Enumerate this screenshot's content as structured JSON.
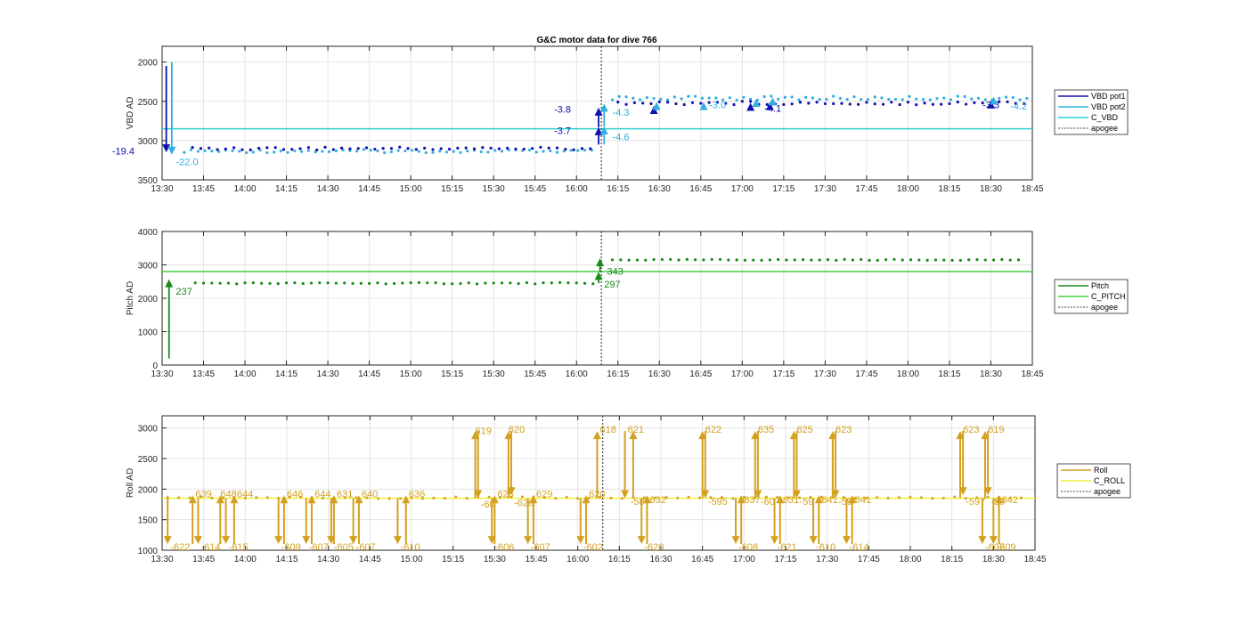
{
  "title": "G&C motor data for dive 766",
  "chart_data": [
    {
      "type": "scatter",
      "name": "vbd",
      "ylabel": "VBD AD",
      "ylim": [
        3500,
        1800
      ],
      "yticks": [
        2000,
        2500,
        3000,
        3500
      ],
      "xlim_minutes": [
        0,
        315
      ],
      "xtick_labels": [
        "13:30",
        "13:45",
        "14:00",
        "14:15",
        "14:30",
        "14:45",
        "15:00",
        "15:15",
        "15:30",
        "15:45",
        "16:00",
        "16:15",
        "16:30",
        "16:45",
        "17:00",
        "17:15",
        "17:30",
        "17:45",
        "18:00",
        "18:15",
        "18:30",
        "18:45"
      ],
      "apogee_minutes": 159,
      "legend": [
        "VBD pot1",
        "VBD pot2",
        "C_VBD",
        "apogee"
      ],
      "colors": {
        "pot1": "#1010b0",
        "pot2": "#30b0e0",
        "c": "#30d0d0",
        "apogee": "#444444"
      },
      "c_value": 2850,
      "pot1_points": {
        "start_min": 11,
        "end_min": 157,
        "step": 3,
        "level": 3100,
        "jitter": 20
      },
      "pot1_points_after": {
        "start_min": 165,
        "end_min": 312,
        "step": 3,
        "level": 2520,
        "jitter": 25
      },
      "pot2_points": {
        "start_min": 8,
        "end_min": 157,
        "step": 2.5,
        "level": 3135,
        "jitter": 20
      },
      "pot2_points_after": {
        "start_min": 163,
        "end_min": 314,
        "step": 2.5,
        "level": 2460,
        "jitter": 25
      },
      "arrows": [
        {
          "series": "pot1",
          "x": 1.5,
          "y0": 2050,
          "y1": 3150,
          "label": "-19.4",
          "lx": -10,
          "ly": 3130,
          "anchor": "end"
        },
        {
          "series": "pot2",
          "x": 3.5,
          "y0": 2000,
          "y1": 3180,
          "label": "-22.0",
          "lx": 5,
          "ly": 3270,
          "anchor": "start"
        },
        {
          "series": "pot1",
          "x": 158,
          "y0": 3050,
          "y1": 2830,
          "label": "-3.7",
          "lx": 148,
          "ly": 2870,
          "anchor": "end"
        },
        {
          "series": "pot1",
          "x": 158,
          "y0": 2830,
          "y1": 2580,
          "label": "-3.8",
          "lx": 148,
          "ly": 2600,
          "anchor": "end"
        },
        {
          "series": "pot2",
          "x": 160,
          "y0": 3050,
          "y1": 2820,
          "label": "-4.6",
          "lx": 163,
          "ly": 2950,
          "anchor": "start"
        },
        {
          "series": "pot2",
          "x": 160,
          "y0": 2820,
          "y1": 2530,
          "label": "-4.3",
          "lx": 163,
          "ly": 2640,
          "anchor": "start"
        },
        {
          "series": "pot1",
          "x": 178,
          "y0": 2580,
          "y1": 2560,
          "label": "",
          "lx": 0,
          "ly": 0,
          "anchor": "start"
        },
        {
          "series": "pot2",
          "x": 179,
          "y0": 2560,
          "y1": 2510,
          "label": "",
          "lx": 0,
          "ly": 0,
          "anchor": "start"
        },
        {
          "series": "pot2",
          "x": 196,
          "y0": 2540,
          "y1": 2510,
          "label": "-3.0",
          "lx": 198,
          "ly": 2545,
          "anchor": "start"
        },
        {
          "series": "pot1",
          "x": 213,
          "y0": 2540,
          "y1": 2520,
          "label": "",
          "lx": 0,
          "ly": 0,
          "anchor": "start"
        },
        {
          "series": "pot2",
          "x": 215,
          "y0": 2510,
          "y1": 2470,
          "label": "",
          "lx": 0,
          "ly": 0,
          "anchor": "start"
        },
        {
          "series": "pot1",
          "x": 220,
          "y0": 2540,
          "y1": 2510,
          "label": "-4.1",
          "lx": 218,
          "ly": 2590,
          "anchor": "start"
        },
        {
          "series": "pot2",
          "x": 221,
          "y0": 2500,
          "y1": 2450,
          "label": "",
          "lx": 0,
          "ly": 0,
          "anchor": "start"
        },
        {
          "series": "pot1",
          "x": 300,
          "y0": 2520,
          "y1": 2490,
          "label": "-3.3",
          "lx": 297,
          "ly": 2545,
          "anchor": "start"
        },
        {
          "series": "pot2",
          "x": 301,
          "y0": 2490,
          "y1": 2440,
          "label": "-4.2",
          "lx": 307,
          "ly": 2560,
          "anchor": "start"
        }
      ]
    },
    {
      "type": "scatter",
      "name": "pitch",
      "ylabel": "Pitch AD",
      "ylim": [
        0,
        4000
      ],
      "yticks": [
        0,
        1000,
        2000,
        3000,
        4000
      ],
      "xlim_minutes": [
        0,
        315
      ],
      "xtick_labels": [
        "13:30",
        "13:45",
        "14:00",
        "14:15",
        "14:30",
        "14:45",
        "15:00",
        "15:15",
        "15:30",
        "15:45",
        "16:00",
        "16:15",
        "16:30",
        "16:45",
        "17:00",
        "17:15",
        "17:30",
        "17:45",
        "18:00",
        "18:15",
        "18:30",
        "18:45"
      ],
      "apogee_minutes": 159,
      "legend": [
        "Pitch",
        "C_PITCH",
        "apogee"
      ],
      "colors": {
        "pitch": "#1a8a1a",
        "c": "#40d040",
        "apogee": "#444444"
      },
      "c_value": 2800,
      "points_before": {
        "start_min": 12,
        "end_min": 157,
        "step": 3,
        "level": 2450,
        "jitter": 20
      },
      "points_after": {
        "start_min": 163,
        "end_min": 311,
        "step": 3,
        "level": 3150,
        "jitter": 15
      },
      "arrows": [
        {
          "x": 2.5,
          "y0": 200,
          "y1": 2570,
          "label": "237",
          "lx": 5,
          "ly": 2220,
          "anchor": "start"
        },
        {
          "x": 158,
          "y0": 2450,
          "y1": 2790,
          "label": "297",
          "lx": 160,
          "ly": 2430,
          "anchor": "start"
        },
        {
          "x": 158.5,
          "y0": 2790,
          "y1": 3200,
          "label": "343",
          "lx": 161,
          "ly": 2810,
          "anchor": "start"
        }
      ]
    },
    {
      "type": "scatter",
      "name": "roll",
      "ylabel": "Roll AD",
      "ylim": [
        1000,
        3200
      ],
      "yticks": [
        1000,
        1500,
        2000,
        2500,
        3000
      ],
      "xlim_minutes": [
        0,
        315
      ],
      "xtick_labels": [
        "13:30",
        "13:45",
        "14:00",
        "14:15",
        "14:30",
        "14:45",
        "15:00",
        "15:15",
        "15:30",
        "15:45",
        "16:00",
        "16:15",
        "16:30",
        "16:45",
        "17:00",
        "17:15",
        "17:30",
        "17:45",
        "18:00",
        "18:15",
        "18:30",
        "18:45"
      ],
      "apogee_minutes": 159,
      "legend": [
        "Roll",
        "C_ROLL",
        "apogee"
      ],
      "colors": {
        "roll": "#d4a020",
        "c": "#f0f040",
        "apogee": "#444444"
      },
      "c_value": 1850,
      "points_level": 1860,
      "arrows": [
        {
          "x": 2,
          "y0": 1850,
          "y1": 1100,
          "label": "-622",
          "lx": 3,
          "ly": 1000
        },
        {
          "x": 11,
          "y0": 1100,
          "y1": 1900,
          "label": "639",
          "lx": 12,
          "ly": 1870
        },
        {
          "x": 13,
          "y0": 1850,
          "y1": 1100,
          "label": "-614",
          "lx": 14,
          "ly": 1000
        },
        {
          "x": 21,
          "y0": 1100,
          "y1": 1900,
          "label": "648",
          "lx": 21,
          "ly": 1870
        },
        {
          "x": 23,
          "y0": 1850,
          "y1": 1100,
          "label": "-615",
          "lx": 24,
          "ly": 1000
        },
        {
          "x": 26,
          "y0": 1100,
          "y1": 1900,
          "label": "644",
          "lx": 27,
          "ly": 1870
        },
        {
          "x": 42,
          "y0": 1850,
          "y1": 1100,
          "label": "-609",
          "lx": 43,
          "ly": 1000
        },
        {
          "x": 44,
          "y0": 1100,
          "y1": 1900,
          "label": "646",
          "lx": 45,
          "ly": 1870
        },
        {
          "x": 52,
          "y0": 1850,
          "y1": 1100,
          "label": "-607",
          "lx": 53,
          "ly": 1000
        },
        {
          "x": 54,
          "y0": 1100,
          "y1": 1900,
          "label": "644",
          "lx": 55,
          "ly": 1870
        },
        {
          "x": 61,
          "y0": 1850,
          "y1": 1100,
          "label": "-605",
          "lx": 62,
          "ly": 1000
        },
        {
          "x": 62,
          "y0": 1100,
          "y1": 1900,
          "label": "631",
          "lx": 63,
          "ly": 1870
        },
        {
          "x": 69,
          "y0": 1850,
          "y1": 1100,
          "label": "-607",
          "lx": 70,
          "ly": 1000
        },
        {
          "x": 71,
          "y0": 1100,
          "y1": 1900,
          "label": "640",
          "lx": 72,
          "ly": 1870
        },
        {
          "x": 85,
          "y0": 1850,
          "y1": 1100,
          "label": "-610",
          "lx": 86,
          "ly": 1000
        },
        {
          "x": 88,
          "y0": 1100,
          "y1": 1900,
          "label": "636",
          "lx": 89,
          "ly": 1870
        },
        {
          "x": 113,
          "y0": 1850,
          "y1": 2950,
          "label": "619",
          "lx": 113,
          "ly": 2900
        },
        {
          "x": 114,
          "y0": 2950,
          "y1": 1850,
          "label": "-60",
          "lx": 115,
          "ly": 1700
        },
        {
          "x": 119,
          "y0": 1850,
          "y1": 1100,
          "label": "-606",
          "lx": 120,
          "ly": 1000
        },
        {
          "x": 120,
          "y0": 1100,
          "y1": 1900,
          "label": "628",
          "lx": 121,
          "ly": 1870
        },
        {
          "x": 125,
          "y0": 1850,
          "y1": 2950,
          "label": "620",
          "lx": 125,
          "ly": 2920
        },
        {
          "x": 126,
          "y0": 2950,
          "y1": 1900,
          "label": "-626",
          "lx": 127,
          "ly": 1720
        },
        {
          "x": 132,
          "y0": 1850,
          "y1": 1100,
          "label": "-607",
          "lx": 133,
          "ly": 1000
        },
        {
          "x": 134,
          "y0": 1100,
          "y1": 1900,
          "label": "629",
          "lx": 135,
          "ly": 1870
        },
        {
          "x": 151,
          "y0": 1850,
          "y1": 1100,
          "label": "-602",
          "lx": 152,
          "ly": 1000
        },
        {
          "x": 153,
          "y0": 1100,
          "y1": 1900,
          "label": "620",
          "lx": 154,
          "ly": 1870
        },
        {
          "x": 157,
          "y0": 1850,
          "y1": 2950,
          "label": "618",
          "lx": 158,
          "ly": 2920
        },
        {
          "x": 167,
          "y0": 2950,
          "y1": 1850,
          "label": "621",
          "lx": 168,
          "ly": 2920
        },
        {
          "x": 170,
          "y0": 1850,
          "y1": 2950,
          "label": "-58",
          "lx": 169,
          "ly": 1740
        },
        {
          "x": 173,
          "y0": 1850,
          "y1": 1100,
          "label": "-620",
          "lx": 174,
          "ly": 1000
        },
        {
          "x": 175,
          "y0": 1100,
          "y1": 1900,
          "label": "632",
          "lx": 176,
          "ly": 1770
        },
        {
          "x": 195,
          "y0": 1850,
          "y1": 2950,
          "label": "622",
          "lx": 196,
          "ly": 2920
        },
        {
          "x": 196,
          "y0": 2950,
          "y1": 1850,
          "label": "-595",
          "lx": 197,
          "ly": 1740
        },
        {
          "x": 207,
          "y0": 1850,
          "y1": 1100,
          "label": "-608",
          "lx": 208,
          "ly": 1000
        },
        {
          "x": 209,
          "y0": 1100,
          "y1": 1900,
          "label": "637",
          "lx": 210,
          "ly": 1770
        },
        {
          "x": 214,
          "y0": 1850,
          "y1": 2950,
          "label": "635",
          "lx": 215,
          "ly": 2920
        },
        {
          "x": 215,
          "y0": 2950,
          "y1": 1850,
          "label": "-60",
          "lx": 216,
          "ly": 1740
        },
        {
          "x": 221,
          "y0": 1850,
          "y1": 1100,
          "label": "-621",
          "lx": 222,
          "ly": 1000
        },
        {
          "x": 223,
          "y0": 1100,
          "y1": 1900,
          "label": "631",
          "lx": 224,
          "ly": 1770
        },
        {
          "x": 228,
          "y0": 1850,
          "y1": 2950,
          "label": "625",
          "lx": 229,
          "ly": 2920
        },
        {
          "x": 229,
          "y0": 2950,
          "y1": 1850,
          "label": "-59",
          "lx": 230,
          "ly": 1740
        },
        {
          "x": 235,
          "y0": 1850,
          "y1": 1100,
          "label": "-610",
          "lx": 236,
          "ly": 1000
        },
        {
          "x": 237,
          "y0": 1100,
          "y1": 1900,
          "label": "641",
          "lx": 238,
          "ly": 1770
        },
        {
          "x": 242,
          "y0": 1850,
          "y1": 2950,
          "label": "623",
          "lx": 243,
          "ly": 2920
        },
        {
          "x": 243,
          "y0": 2950,
          "y1": 1850,
          "label": "-59",
          "lx": 244,
          "ly": 1740
        },
        {
          "x": 247,
          "y0": 1850,
          "y1": 1100,
          "label": "-614",
          "lx": 248,
          "ly": 1000
        },
        {
          "x": 249,
          "y0": 1100,
          "y1": 1900,
          "label": "641",
          "lx": 250,
          "ly": 1770
        },
        {
          "x": 288,
          "y0": 1850,
          "y1": 2950,
          "label": "623",
          "lx": 289,
          "ly": 2920
        },
        {
          "x": 289,
          "y0": 2950,
          "y1": 1900,
          "label": "-597",
          "lx": 290,
          "ly": 1740
        },
        {
          "x": 296,
          "y0": 1850,
          "y1": 1100,
          "label": "-607",
          "lx": 297,
          "ly": 1000
        },
        {
          "x": 297,
          "y0": 1850,
          "y1": 2950,
          "label": "619",
          "lx": 298,
          "ly": 2920
        },
        {
          "x": 298,
          "y0": 2950,
          "y1": 1900,
          "label": "-59",
          "lx": 299,
          "ly": 1740
        },
        {
          "x": 300,
          "y0": 1850,
          "y1": 1100,
          "label": "-609",
          "lx": 301,
          "ly": 1000
        },
        {
          "x": 302,
          "y0": 1100,
          "y1": 1900,
          "label": "642",
          "lx": 303,
          "ly": 1770
        }
      ]
    }
  ]
}
